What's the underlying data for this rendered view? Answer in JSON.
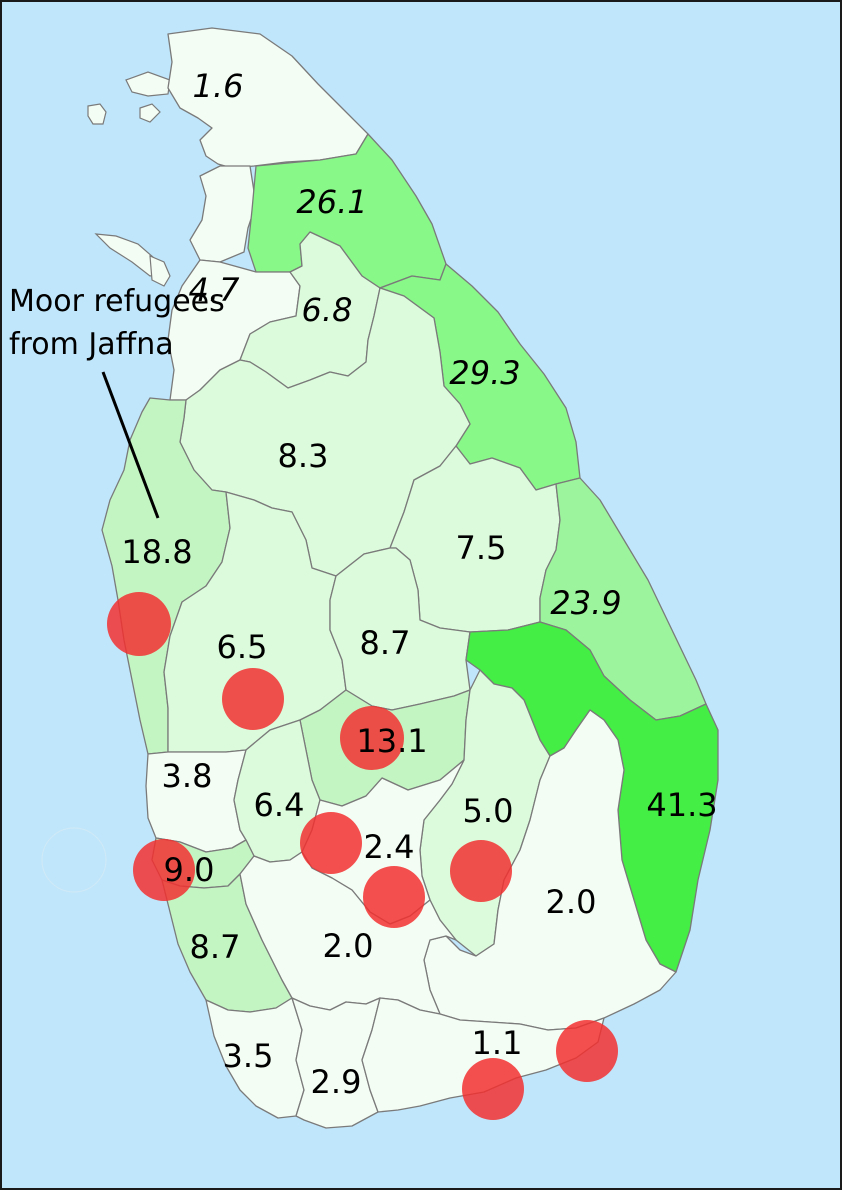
{
  "annotation": {
    "line1": "Moor refugees",
    "line2": "from Jaffna"
  },
  "district_labels": [
    {
      "id": "jaffna",
      "text": "1.6",
      "italic": true
    },
    {
      "id": "mullaitivu",
      "text": "26.1",
      "italic": true
    },
    {
      "id": "mannar",
      "text": "4.7",
      "italic": true
    },
    {
      "id": "vavuniya",
      "text": "6.8",
      "italic": true
    },
    {
      "id": "trincomalee",
      "text": "29.3",
      "italic": true
    },
    {
      "id": "anuradhapura",
      "text": "8.3",
      "italic": false
    },
    {
      "id": "puttalam",
      "text": "18.8",
      "italic": false
    },
    {
      "id": "polonnaruwa",
      "text": "7.5",
      "italic": false
    },
    {
      "id": "batticaloa",
      "text": "23.9",
      "italic": true
    },
    {
      "id": "kurunegala",
      "text": "6.5",
      "italic": false
    },
    {
      "id": "matale",
      "text": "8.7",
      "italic": false
    },
    {
      "id": "kandy",
      "text": "13.1",
      "italic": false
    },
    {
      "id": "ampara",
      "text": "41.3",
      "italic": false
    },
    {
      "id": "gampaha",
      "text": "3.8",
      "italic": false
    },
    {
      "id": "kegalle",
      "text": "6.4",
      "italic": false
    },
    {
      "id": "badulla",
      "text": "5.0",
      "italic": false
    },
    {
      "id": "nuwara-eliya",
      "text": "2.4",
      "italic": false
    },
    {
      "id": "colombo",
      "text": "9.0",
      "italic": false
    },
    {
      "id": "monaragala",
      "text": "2.0",
      "italic": false
    },
    {
      "id": "kalutara",
      "text": "8.7",
      "italic": false
    },
    {
      "id": "ratnapura",
      "text": "2.0",
      "italic": false
    },
    {
      "id": "hambantota",
      "text": "1.1",
      "italic": false
    },
    {
      "id": "galle",
      "text": "3.5",
      "italic": false
    },
    {
      "id": "matara",
      "text": "2.9",
      "italic": false
    }
  ],
  "colors": {
    "sea": "#bfe6fb",
    "shade_highest": "#44ee44",
    "shade_high": "#88f888",
    "shade_mid": "#9cf59c",
    "shade_low": "#c3f5c3",
    "shade_lower": "#dcfbdc",
    "shade_lowest": "#f4fdf4",
    "circle": "#f23030"
  }
}
